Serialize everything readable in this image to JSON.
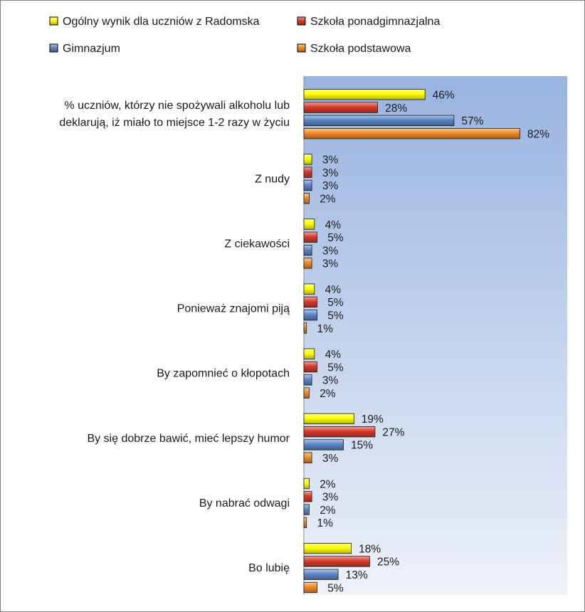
{
  "chart_data": {
    "type": "bar",
    "orientation": "horizontal",
    "title": "",
    "xlabel": "",
    "ylabel": "",
    "xlim": [
      0,
      100
    ],
    "grid": false,
    "legend_position": "top",
    "categories": [
      [
        "% uczniów, którzy nie spożywali alkoholu lub",
        "deklarują, iż miało to miejsce 1-2 razy w życiu"
      ],
      [
        "Z nudy"
      ],
      [
        "Z ciekawości"
      ],
      [
        "Ponieważ znajomi piją"
      ],
      [
        "By zapomnieć o kłopotach"
      ],
      [
        "By się dobrze bawić, mieć lepszy humor"
      ],
      [
        "By nabrać odwagi"
      ],
      [
        "Bo lubię"
      ]
    ],
    "series": [
      {
        "name": "Ogólny wynik dla uczniów z Radomska",
        "color": "#ffff00",
        "values": [
          46,
          3,
          4,
          4,
          4,
          19,
          2,
          18
        ]
      },
      {
        "name": "Szkoła ponadgimnazjalna",
        "color": "#d83a2a",
        "values": [
          28,
          3,
          5,
          5,
          5,
          27,
          3,
          25
        ]
      },
      {
        "name": "Gimnazjum",
        "color": "#5b86c8",
        "values": [
          57,
          3,
          3,
          5,
          3,
          15,
          2,
          13
        ]
      },
      {
        "name": "Szkoła podstawowa",
        "color": "#ee8a26",
        "values": [
          82,
          2,
          3,
          1,
          2,
          3,
          1,
          5
        ]
      }
    ],
    "value_suffix": "%"
  }
}
